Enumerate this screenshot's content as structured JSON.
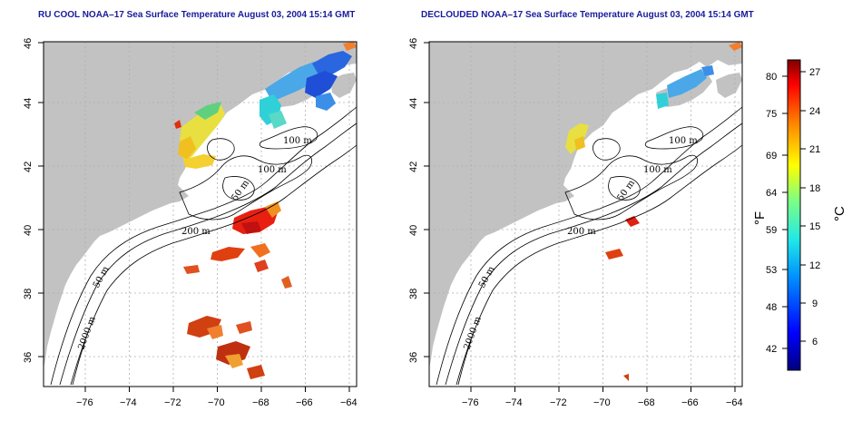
{
  "titles": {
    "left": "RU COOL NOAA–17 Sea Surface Temperature August 03, 2004 15:14 GMT",
    "right": "DECLOUDED NOAA–17 Sea Surface Temperature August 03, 2004 15:14 GMT"
  },
  "axes": {
    "lon_ticks": [
      "−76",
      "−74",
      "−72",
      "−70",
      "−68",
      "−66",
      "−64"
    ],
    "lat_ticks": [
      "36",
      "38",
      "40",
      "42",
      "44",
      "46"
    ]
  },
  "contour_labels": [
    "100 m",
    "100 m",
    "50 m",
    "200 m",
    "50 m",
    "2000 m"
  ],
  "colorbar": {
    "fahrenheit_ticks": [
      "80",
      "75",
      "69",
      "64",
      "59",
      "53",
      "48",
      "42"
    ],
    "celsius_ticks": [
      "27",
      "24",
      "21",
      "18",
      "15",
      "12",
      "9",
      "6"
    ],
    "fahrenheit_unit": "°F",
    "celsius_unit": "°C",
    "colors": [
      "#00007f",
      "#0000ff",
      "#0080ff",
      "#00ffff",
      "#80ff80",
      "#ffff00",
      "#ff8000",
      "#ff0000",
      "#7f0000"
    ]
  },
  "colors": {
    "land": "#c2c2c2",
    "grid": "#b0b0b0",
    "title": "#1a1a9c"
  }
}
